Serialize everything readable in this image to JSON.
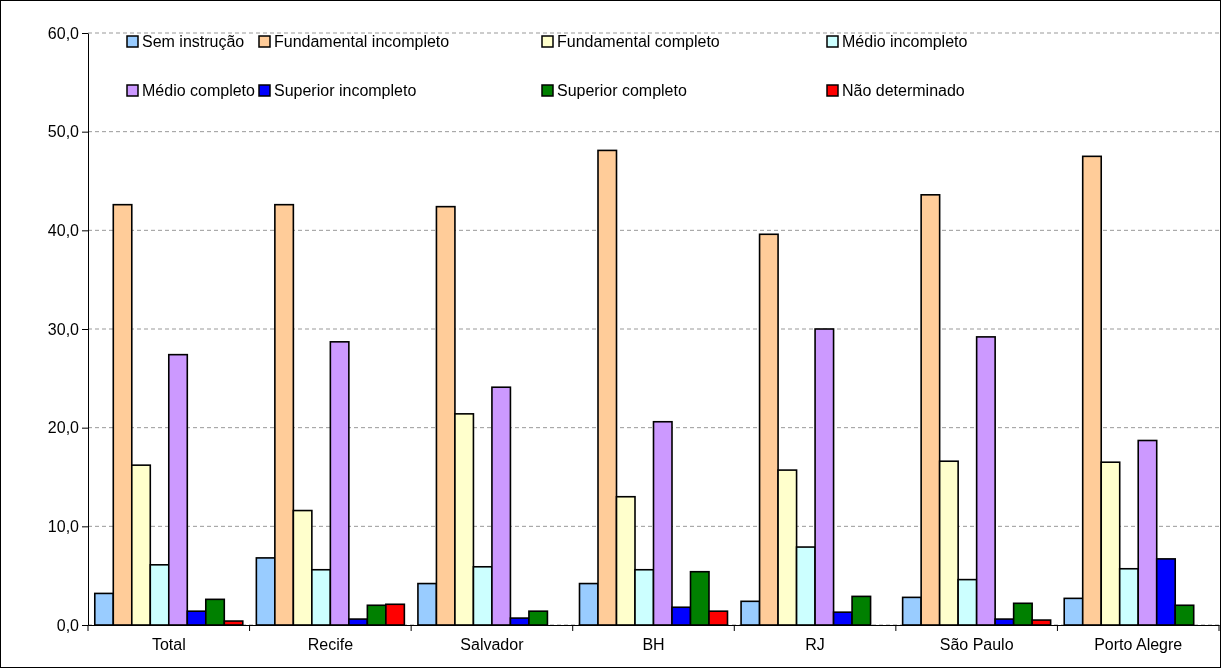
{
  "chart_data": {
    "type": "bar",
    "categories": [
      "Total",
      "Recife",
      "Salvador",
      "BH",
      "RJ",
      "São Paulo",
      "Porto Alegre"
    ],
    "ylim": [
      0,
      60
    ],
    "yticks": [
      {
        "value": 0,
        "label": "0,0"
      },
      {
        "value": 10,
        "label": "10,0"
      },
      {
        "value": 20,
        "label": "20,0"
      },
      {
        "value": 30,
        "label": "30,0"
      },
      {
        "value": 40,
        "label": "40,0"
      },
      {
        "value": 50,
        "label": "50,0"
      },
      {
        "value": 60,
        "label": "60,0"
      }
    ],
    "grid": "y",
    "legend": "top",
    "series": [
      {
        "name": "Sem instrução",
        "color": "#99ccff",
        "values": [
          3.2,
          6.8,
          4.2,
          4.2,
          2.4,
          2.8,
          2.7
        ]
      },
      {
        "name": "Fundamental incompleto",
        "color": "#ffcc99",
        "values": [
          42.6,
          42.6,
          42.4,
          48.1,
          39.6,
          43.6,
          47.5
        ]
      },
      {
        "name": "Fundamental completo",
        "color": "#ffffcc",
        "values": [
          16.2,
          11.6,
          21.4,
          13.0,
          15.7,
          16.6,
          16.5
        ]
      },
      {
        "name": "Médio incompleto",
        "color": "#ccffff",
        "values": [
          6.1,
          5.6,
          5.9,
          5.6,
          7.9,
          4.6,
          5.7
        ]
      },
      {
        "name": "Médio completo",
        "color": "#cc99ff",
        "values": [
          27.4,
          28.7,
          24.1,
          20.6,
          30.0,
          29.2,
          18.7
        ]
      },
      {
        "name": "Superior incompleto",
        "color": "#0000ff",
        "values": [
          1.4,
          0.6,
          0.7,
          1.8,
          1.3,
          0.6,
          6.7
        ]
      },
      {
        "name": "Superior completo",
        "color": "#008000",
        "values": [
          2.6,
          2.0,
          1.4,
          5.4,
          2.9,
          2.2,
          2.0
        ]
      },
      {
        "name": "Não determinado",
        "color": "#ff0000",
        "values": [
          0.4,
          2.1,
          null,
          1.4,
          null,
          0.5,
          null
        ]
      }
    ]
  }
}
